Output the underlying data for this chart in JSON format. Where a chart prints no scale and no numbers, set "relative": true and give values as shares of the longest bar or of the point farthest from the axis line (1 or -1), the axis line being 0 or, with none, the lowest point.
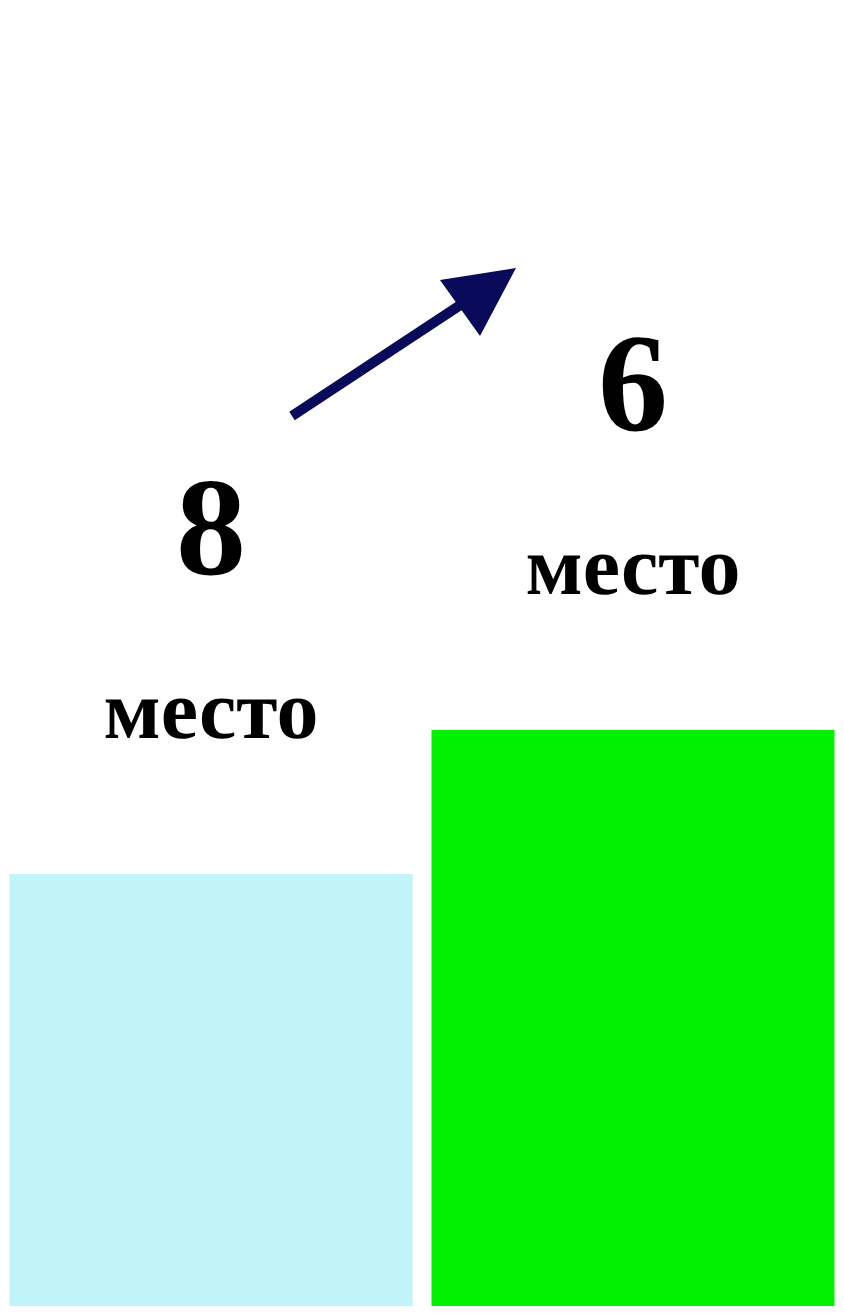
{
  "chart_data": {
    "type": "bar",
    "relative": true,
    "categories": [
      null,
      null
    ],
    "series": [
      {
        "colors": [
          "#c0f4f8",
          "#00f000"
        ],
        "values": [
          0.75,
          1
        ]
      }
    ],
    "annotations": [
      "8 место",
      "6 место"
    ]
  }
}
